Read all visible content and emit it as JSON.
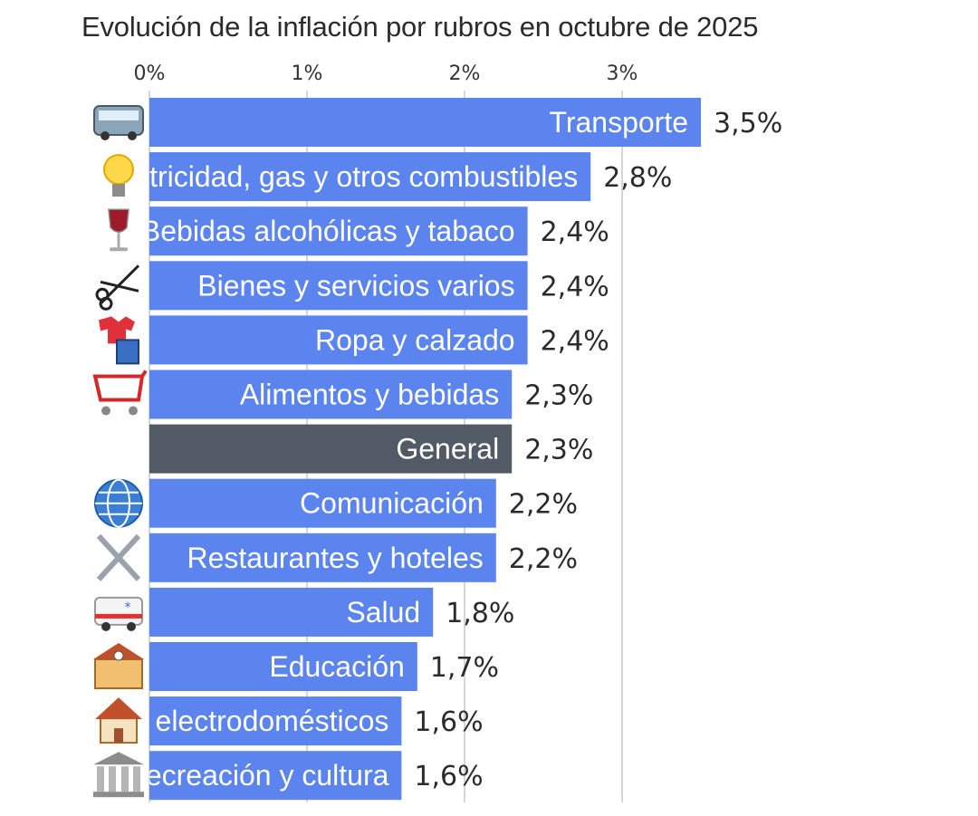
{
  "chart_data": {
    "type": "bar",
    "orientation": "horizontal",
    "title": "Evolución de la inflación por rubros en octubre de 2025",
    "x_ticks": [
      "0%",
      "1%",
      "2%",
      "3%"
    ],
    "x_tick_values": [
      0,
      1,
      2,
      3
    ],
    "xlim": [
      0,
      3.5
    ],
    "grid": true,
    "colors": {
      "default": "#5b84ee",
      "highlight": "#525a66"
    },
    "categories": [
      {
        "label": "Transporte",
        "value": 3.5,
        "value_label": "3,5%",
        "icon": "bus-icon",
        "highlight": false
      },
      {
        "label": "Vivienda, agua, electricidad, gas y otros combustibles",
        "value": 2.8,
        "value_label": "2,8%",
        "icon": "light-bulb-icon",
        "highlight": false
      },
      {
        "label": "Bebidas alcohólicas y tabaco",
        "value": 2.4,
        "value_label": "2,4%",
        "icon": "wine-glass-icon",
        "highlight": false
      },
      {
        "label": "Bienes y servicios varios",
        "value": 2.4,
        "value_label": "2,4%",
        "icon": "scissors-comb-icon",
        "highlight": false
      },
      {
        "label": "Ropa y calzado",
        "value": 2.4,
        "value_label": "2,4%",
        "icon": "clothes-icon",
        "highlight": false
      },
      {
        "label": "Alimentos y bebidas",
        "value": 2.3,
        "value_label": "2,3%",
        "icon": "shopping-cart-icon",
        "highlight": false
      },
      {
        "label": "General",
        "value": 2.3,
        "value_label": "2,3%",
        "icon": "",
        "highlight": true
      },
      {
        "label": "Comunicación",
        "value": 2.2,
        "value_label": "2,2%",
        "icon": "globe-icon",
        "highlight": false
      },
      {
        "label": "Restaurantes y hoteles",
        "value": 2.2,
        "value_label": "2,2%",
        "icon": "fork-knife-icon",
        "highlight": false
      },
      {
        "label": "Salud",
        "value": 1.8,
        "value_label": "1,8%",
        "icon": "ambulance-icon",
        "highlight": false
      },
      {
        "label": "Educación",
        "value": 1.7,
        "value_label": "1,7%",
        "icon": "school-icon",
        "highlight": false
      },
      {
        "label": "Equipamiento y mantenimiento del hogar y electrodomésticos",
        "value": 1.6,
        "value_label": "1,6%",
        "icon": "house-icon",
        "highlight": false
      },
      {
        "label": "Recreación y cultura",
        "value": 1.6,
        "value_label": "1,6%",
        "icon": "museum-icon",
        "highlight": false
      }
    ]
  }
}
